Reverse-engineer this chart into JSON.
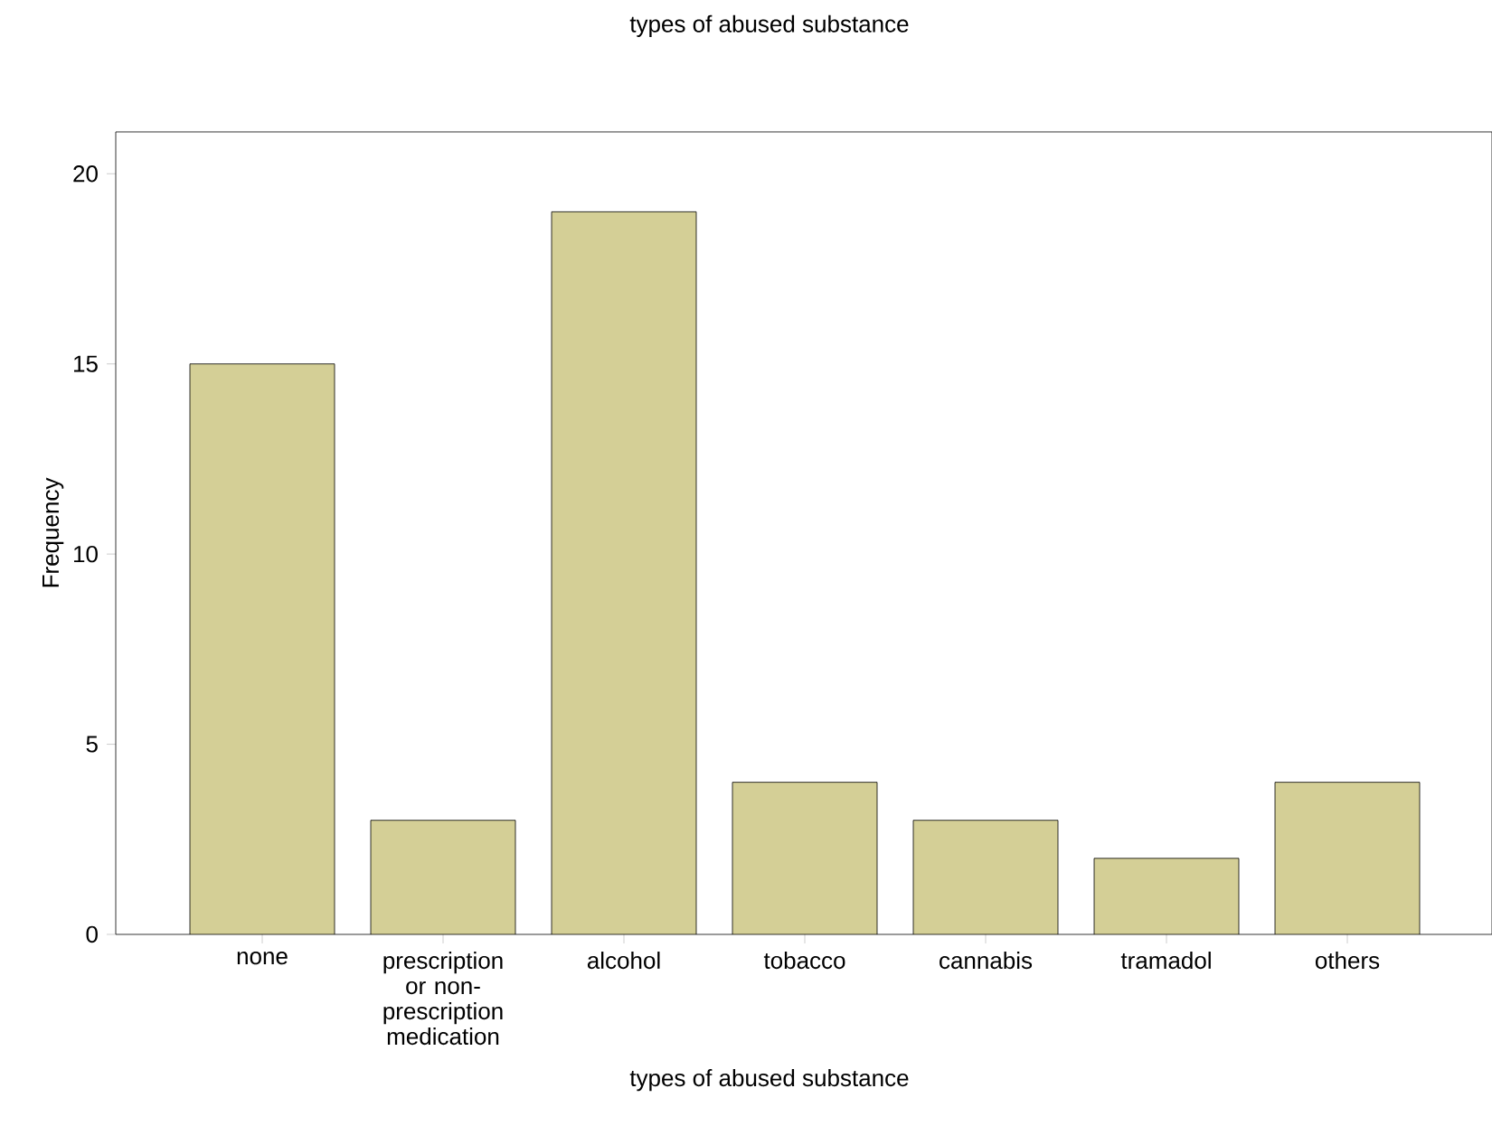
{
  "chart_data": {
    "type": "bar",
    "title": "types of abused substance",
    "xlabel": "types of abused substance",
    "ylabel": "Frequency",
    "categories": [
      "none",
      "prescription or non-prescription medication",
      "alcohol",
      "tobacco",
      "cannabis",
      "tramadol",
      "others"
    ],
    "values": [
      15,
      3,
      19,
      4,
      3,
      2,
      4
    ],
    "color": "#d4cf96",
    "ylim": [
      0,
      21.1
    ],
    "yticks": [
      0,
      5,
      10,
      15,
      20
    ],
    "grid": false
  }
}
